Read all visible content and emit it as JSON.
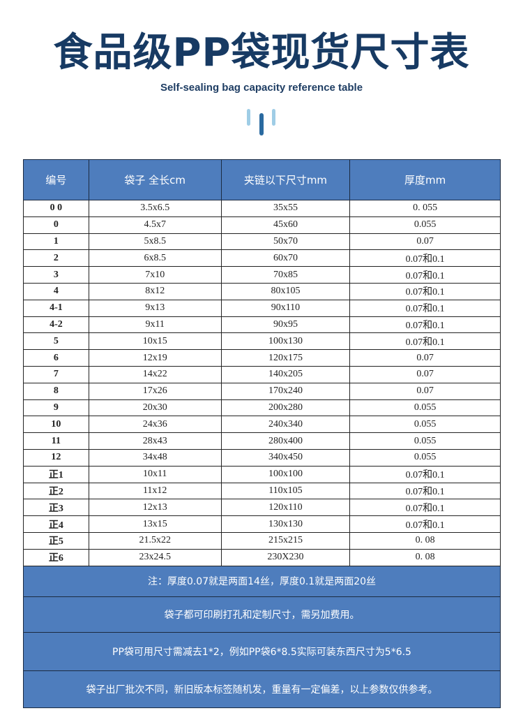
{
  "title": "食品级PP袋现货尺寸表",
  "subtitle": "Self-sealing bag capacity reference table",
  "colors": {
    "title": "#173a63",
    "header_bg": "#4e7dbd",
    "deco_light": "#9fcde6",
    "deco_dark": "#2a6aa0"
  },
  "table": {
    "headers": [
      "编号",
      "袋子 全长cm",
      "夹链以下尺寸mm",
      "厚度mm"
    ],
    "rows": [
      [
        "0 0",
        "3.5x6.5",
        "35x55",
        "0. 055"
      ],
      [
        "0",
        "4.5x7",
        "45x60",
        "0.055"
      ],
      [
        "1",
        "5x8.5",
        "50x70",
        "0.07"
      ],
      [
        "2",
        "6x8.5",
        "60x70",
        "0.07和0.1"
      ],
      [
        "3",
        "7x10",
        "70x85",
        "0.07和0.1"
      ],
      [
        "4",
        "8x12",
        "80x105",
        "0.07和0.1"
      ],
      [
        "4-1",
        "9x13",
        "90x110",
        "0.07和0.1"
      ],
      [
        "4-2",
        "9x11",
        "90x95",
        "0.07和0.1"
      ],
      [
        "5",
        "10x15",
        "100x130",
        "0.07和0.1"
      ],
      [
        "6",
        "12x19",
        "120x175",
        "0.07"
      ],
      [
        "7",
        "14x22",
        "140x205",
        "0.07"
      ],
      [
        "8",
        "17x26",
        "170x240",
        "0.07"
      ],
      [
        "9",
        "20x30",
        "200x280",
        "0.055"
      ],
      [
        "10",
        "24x36",
        "240x340",
        "0.055"
      ],
      [
        "11",
        "28x43",
        "280x400",
        "0.055"
      ],
      [
        "12",
        "34x48",
        "340x450",
        "0.055"
      ],
      [
        "正1",
        "10x11",
        "100x100",
        "0.07和0.1"
      ],
      [
        "正2",
        "11x12",
        "110x105",
        "0.07和0.1"
      ],
      [
        "正3",
        "12x13",
        "120x110",
        "0.07和0.1"
      ],
      [
        "正4",
        "13x15",
        "130x130",
        "0.07和0.1"
      ],
      [
        "正5",
        "21.5x22",
        "215x215",
        "0. 08"
      ],
      [
        "正6",
        "23x24.5",
        "230X230",
        "0. 08"
      ]
    ],
    "notes": [
      "注：厚度0.07就是两面14丝，厚度0.1就是两面20丝",
      "袋子都可印刷打孔和定制尺寸，需另加费用。",
      "PP袋可用尺寸需减去1*2，例如PP袋6*8.5实际可装东西尺寸为5*6.5",
      "袋子出厂批次不同，新旧版本标签随机发，重量有一定偏差，以上参数仅供参考。"
    ]
  }
}
